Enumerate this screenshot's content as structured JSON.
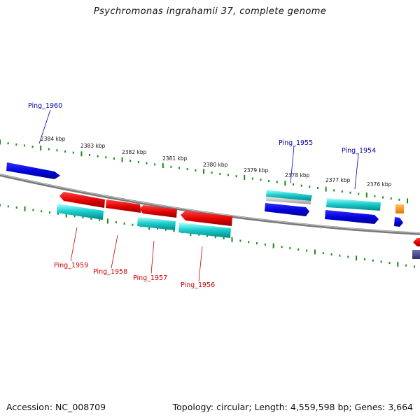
{
  "title": "Psychromonas ingrahamii 37, complete genome",
  "footer": {
    "accession": "Accession: NC_008709",
    "summary": "Topology: circular; Length: 4,559,598 bp; Genes: 3,664"
  },
  "colors": {
    "forward_cds": "#0000e6",
    "reverse_cds": "#e60000",
    "rna": "#00c8c8",
    "other": "#ff9900",
    "backbone": "#888888",
    "ticks": "#1a8a1a",
    "forward_label": "#0000aa",
    "reverse_label": "#cc0000"
  },
  "scale_ticks": [
    "2384 kbp",
    "2383 kbp",
    "2382 kbp",
    "2381 kbp",
    "2380 kbp",
    "2379 kbp",
    "2378 kbp",
    "2377 kbp",
    "2376 kbp"
  ],
  "gene_labels": {
    "forward": [
      "Ping_1960",
      "Ping_1955",
      "Ping_1954"
    ],
    "reverse": [
      "Ping_1959",
      "Ping_1958",
      "Ping_1957",
      "Ping_1956"
    ]
  }
}
